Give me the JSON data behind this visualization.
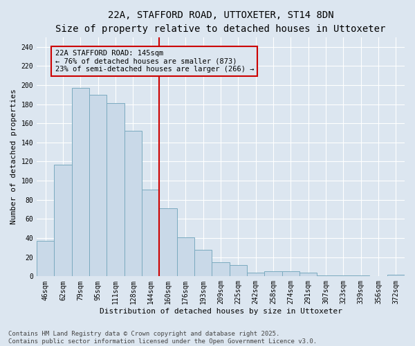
{
  "title_line1": "22A, STAFFORD ROAD, UTTOXETER, ST14 8DN",
  "title_line2": "Size of property relative to detached houses in Uttoxeter",
  "xlabel": "Distribution of detached houses by size in Uttoxeter",
  "ylabel": "Number of detached properties",
  "categories": [
    "46sqm",
    "62sqm",
    "79sqm",
    "95sqm",
    "111sqm",
    "128sqm",
    "144sqm",
    "160sqm",
    "176sqm",
    "193sqm",
    "209sqm",
    "225sqm",
    "242sqm",
    "258sqm",
    "274sqm",
    "291sqm",
    "307sqm",
    "323sqm",
    "339sqm",
    "356sqm",
    "372sqm"
  ],
  "values": [
    37,
    117,
    197,
    190,
    181,
    152,
    91,
    71,
    41,
    28,
    15,
    12,
    4,
    5,
    5,
    4,
    1,
    1,
    1,
    0,
    2
  ],
  "bar_color": "#c9d9e8",
  "bar_edge_color": "#7aaabf",
  "vline_color": "#cc0000",
  "annotation_line1": "22A STAFFORD ROAD: 145sqm",
  "annotation_line2": "← 76% of detached houses are smaller (873)",
  "annotation_line3": "23% of semi-detached houses are larger (266) →",
  "annotation_box_edge_color": "#cc0000",
  "ylim": [
    0,
    250
  ],
  "yticks": [
    0,
    20,
    40,
    60,
    80,
    100,
    120,
    140,
    160,
    180,
    200,
    220,
    240
  ],
  "bg_color": "#dce6f0",
  "plot_bg_color": "#dce6f0",
  "footer_text": "Contains HM Land Registry data © Crown copyright and database right 2025.\nContains public sector information licensed under the Open Government Licence v3.0.",
  "title_fontsize": 10,
  "subtitle_fontsize": 9,
  "axis_label_fontsize": 8,
  "tick_fontsize": 7,
  "annotation_fontsize": 7.5,
  "footer_fontsize": 6.5
}
